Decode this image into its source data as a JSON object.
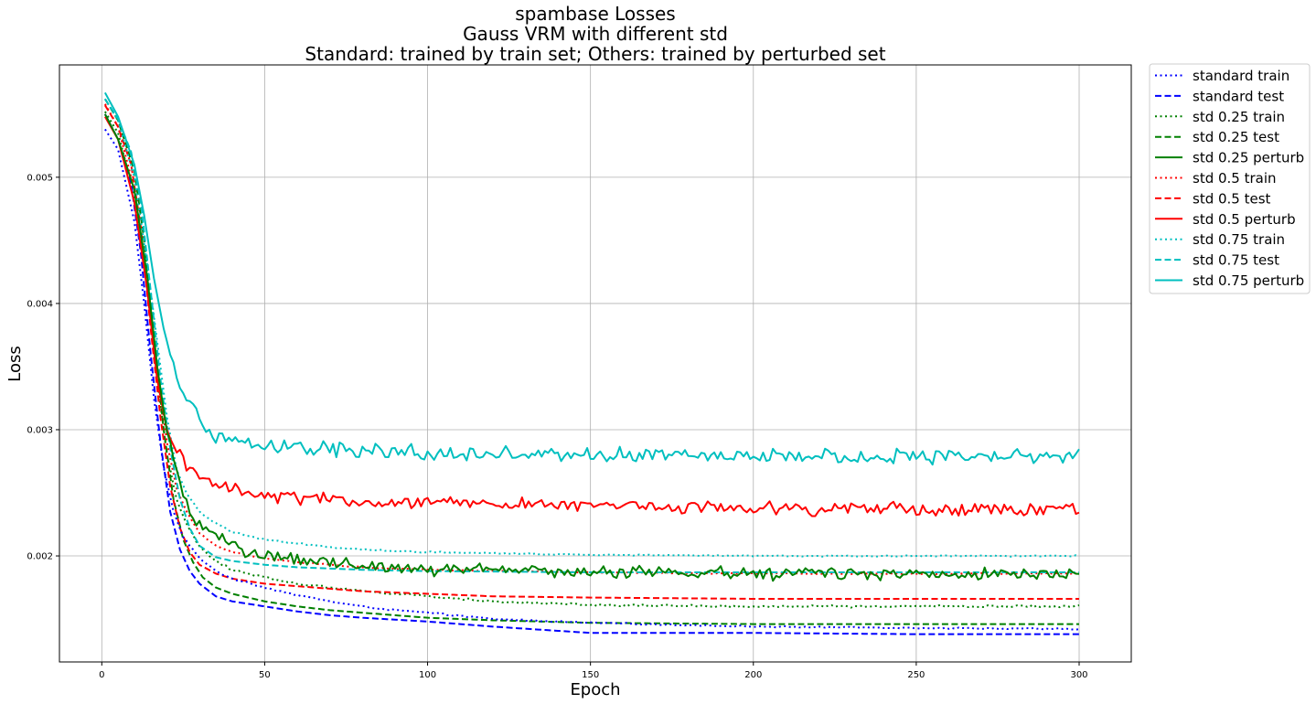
{
  "chart_data": {
    "type": "line",
    "title": [
      "spambase Losses",
      "Gauss VRM with different std",
      "Standard: trained by train set; Others: trained by perturbed set"
    ],
    "xlabel": "Epoch",
    "ylabel": "Loss",
    "xlim": [
      -13,
      316
    ],
    "ylim": [
      0.00116,
      0.00589
    ],
    "x_ticks": [
      0,
      50,
      100,
      150,
      200,
      250,
      300
    ],
    "x_tick_labels": [
      "0",
      "50",
      "100",
      "150",
      "200",
      "250",
      "300"
    ],
    "y_ticks": [
      0.002,
      0.003,
      0.004,
      0.005
    ],
    "y_tick_labels": [
      "0.002",
      "0.003",
      "0.004",
      "0.005"
    ],
    "grid": true,
    "legend_position": "outside-top-right",
    "epochs": [
      1,
      300
    ],
    "series": [
      {
        "name": "standard train",
        "color": "#0000ff",
        "style": "dotted",
        "points": [
          [
            1,
            0.00538
          ],
          [
            5,
            0.00522
          ],
          [
            10,
            0.00465
          ],
          [
            13,
            0.004
          ],
          [
            16,
            0.00325
          ],
          [
            19,
            0.0027
          ],
          [
            22,
            0.00235
          ],
          [
            25,
            0.00215
          ],
          [
            30,
            0.00198
          ],
          [
            35,
            0.00188
          ],
          [
            40,
            0.00182
          ],
          [
            50,
            0.00175
          ],
          [
            60,
            0.00169
          ],
          [
            70,
            0.00164
          ],
          [
            80,
            0.0016
          ],
          [
            90,
            0.00157
          ],
          [
            100,
            0.00155
          ],
          [
            120,
            0.0015
          ],
          [
            150,
            0.00147
          ],
          [
            200,
            0.00144
          ],
          [
            250,
            0.00143
          ],
          [
            300,
            0.00142
          ]
        ],
        "noise": 5e-06
      },
      {
        "name": "standard test",
        "color": "#0000ff",
        "style": "dashed",
        "points": [
          [
            1,
            0.0055
          ],
          [
            5,
            0.0053
          ],
          [
            9,
            0.00495
          ],
          [
            12,
            0.0044
          ],
          [
            15,
            0.0036
          ],
          [
            18,
            0.0029
          ],
          [
            21,
            0.00235
          ],
          [
            24,
            0.00205
          ],
          [
            27,
            0.00188
          ],
          [
            30,
            0.00178
          ],
          [
            35,
            0.00168
          ],
          [
            40,
            0.00164
          ],
          [
            50,
            0.0016
          ],
          [
            60,
            0.00156
          ],
          [
            70,
            0.00153
          ],
          [
            80,
            0.00151
          ],
          [
            100,
            0.00148
          ],
          [
            120,
            0.00144
          ],
          [
            150,
            0.00139
          ],
          [
            200,
            0.00139
          ],
          [
            250,
            0.00138
          ],
          [
            300,
            0.00138
          ]
        ],
        "noise": 0
      },
      {
        "name": "std 0.25 train",
        "color": "#008000",
        "style": "dotted",
        "points": [
          [
            1,
            0.00552
          ],
          [
            5,
            0.00535
          ],
          [
            10,
            0.00485
          ],
          [
            14,
            0.0041
          ],
          [
            17,
            0.0034
          ],
          [
            20,
            0.0028
          ],
          [
            23,
            0.00245
          ],
          [
            26,
            0.00225
          ],
          [
            30,
            0.00207
          ],
          [
            35,
            0.00196
          ],
          [
            40,
            0.00189
          ],
          [
            50,
            0.00183
          ],
          [
            60,
            0.00178
          ],
          [
            70,
            0.00175
          ],
          [
            80,
            0.00172
          ],
          [
            90,
            0.0017
          ],
          [
            100,
            0.00168
          ],
          [
            120,
            0.00164
          ],
          [
            150,
            0.00161
          ],
          [
            200,
            0.0016
          ],
          [
            250,
            0.0016
          ],
          [
            300,
            0.0016
          ]
        ],
        "noise": 8e-06
      },
      {
        "name": "std 0.25 test",
        "color": "#008000",
        "style": "dashed",
        "points": [
          [
            1,
            0.00562
          ],
          [
            5,
            0.00545
          ],
          [
            10,
            0.00505
          ],
          [
            13,
            0.0045
          ],
          [
            16,
            0.00375
          ],
          [
            19,
            0.003
          ],
          [
            22,
            0.00245
          ],
          [
            25,
            0.00213
          ],
          [
            28,
            0.00195
          ],
          [
            31,
            0.00183
          ],
          [
            35,
            0.00175
          ],
          [
            40,
            0.0017
          ],
          [
            50,
            0.00164
          ],
          [
            60,
            0.0016
          ],
          [
            70,
            0.00157
          ],
          [
            80,
            0.00155
          ],
          [
            100,
            0.00151
          ],
          [
            120,
            0.00149
          ],
          [
            150,
            0.00147
          ],
          [
            200,
            0.00146
          ],
          [
            250,
            0.00146
          ],
          [
            300,
            0.00146
          ]
        ],
        "noise": 0
      },
      {
        "name": "std 0.25 perturb",
        "color": "#008000",
        "style": "solid",
        "points": [
          [
            1,
            0.0055
          ],
          [
            5,
            0.0053
          ],
          [
            10,
            0.0049
          ],
          [
            14,
            0.0042
          ],
          [
            17,
            0.0035
          ],
          [
            20,
            0.00298
          ],
          [
            23,
            0.00265
          ],
          [
            26,
            0.0024
          ],
          [
            30,
            0.00225
          ],
          [
            35,
            0.00215
          ],
          [
            40,
            0.00208
          ],
          [
            50,
            0.002
          ],
          [
            60,
            0.00196
          ],
          [
            80,
            0.00192
          ],
          [
            100,
            0.0019
          ],
          [
            150,
            0.00187
          ],
          [
            200,
            0.00186
          ],
          [
            250,
            0.00186
          ],
          [
            300,
            0.00186
          ]
        ],
        "noise": 4.5e-05
      },
      {
        "name": "std 0.5 train",
        "color": "#ff0000",
        "style": "dotted",
        "points": [
          [
            1,
            0.00558
          ],
          [
            5,
            0.0054
          ],
          [
            10,
            0.0049
          ],
          [
            14,
            0.0042
          ],
          [
            17,
            0.0035
          ],
          [
            20,
            0.0029
          ],
          [
            23,
            0.00253
          ],
          [
            26,
            0.00235
          ],
          [
            30,
            0.00218
          ],
          [
            35,
            0.00208
          ],
          [
            40,
            0.00203
          ],
          [
            50,
            0.00198
          ],
          [
            60,
            0.00195
          ],
          [
            70,
            0.00193
          ],
          [
            80,
            0.00191
          ],
          [
            100,
            0.00189
          ],
          [
            150,
            0.00187
          ],
          [
            200,
            0.00186
          ],
          [
            250,
            0.00186
          ],
          [
            300,
            0.00186
          ]
        ],
        "noise": 4e-06
      },
      {
        "name": "std 0.5 test",
        "color": "#ff0000",
        "style": "dashed",
        "points": [
          [
            1,
            0.00557
          ],
          [
            5,
            0.0054
          ],
          [
            9,
            0.0051
          ],
          [
            12,
            0.0046
          ],
          [
            15,
            0.0038
          ],
          [
            18,
            0.0031
          ],
          [
            21,
            0.00255
          ],
          [
            24,
            0.00222
          ],
          [
            27,
            0.00203
          ],
          [
            30,
            0.00193
          ],
          [
            35,
            0.00186
          ],
          [
            40,
            0.00182
          ],
          [
            50,
            0.00178
          ],
          [
            60,
            0.00176
          ],
          [
            70,
            0.00174
          ],
          [
            80,
            0.00172
          ],
          [
            100,
            0.0017
          ],
          [
            120,
            0.00168
          ],
          [
            150,
            0.00167
          ],
          [
            200,
            0.00166
          ],
          [
            250,
            0.00166
          ],
          [
            300,
            0.00166
          ]
        ],
        "noise": 0
      },
      {
        "name": "std 0.5 perturb",
        "color": "#ff0000",
        "style": "solid",
        "points": [
          [
            1,
            0.00548
          ],
          [
            5,
            0.0053
          ],
          [
            10,
            0.0048
          ],
          [
            14,
            0.0041
          ],
          [
            17,
            0.0034
          ],
          [
            20,
            0.003
          ],
          [
            23,
            0.00285
          ],
          [
            26,
            0.00273
          ],
          [
            30,
            0.00264
          ],
          [
            35,
            0.00258
          ],
          [
            40,
            0.00254
          ],
          [
            50,
            0.00248
          ],
          [
            60,
            0.00246
          ],
          [
            80,
            0.00244
          ],
          [
            100,
            0.00242
          ],
          [
            150,
            0.0024
          ],
          [
            200,
            0.00238
          ],
          [
            250,
            0.00237
          ],
          [
            300,
            0.00236
          ]
        ],
        "noise": 4.5e-05
      },
      {
        "name": "std 0.75 train",
        "color": "#00bfbf",
        "style": "dotted",
        "points": [
          [
            1,
            0.00562
          ],
          [
            5,
            0.00545
          ],
          [
            10,
            0.005
          ],
          [
            14,
            0.0043
          ],
          [
            17,
            0.0037
          ],
          [
            20,
            0.0031
          ],
          [
            23,
            0.00268
          ],
          [
            26,
            0.0025
          ],
          [
            30,
            0.00235
          ],
          [
            35,
            0.00226
          ],
          [
            40,
            0.00219
          ],
          [
            50,
            0.00213
          ],
          [
            60,
            0.0021
          ],
          [
            70,
            0.00207
          ],
          [
            80,
            0.00205
          ],
          [
            100,
            0.00203
          ],
          [
            150,
            0.00201
          ],
          [
            200,
            0.002
          ],
          [
            250,
            0.002
          ],
          [
            300,
            0.002
          ]
        ],
        "noise": 5e-06
      },
      {
        "name": "std 0.75 test",
        "color": "#00bfbf",
        "style": "dashed",
        "points": [
          [
            1,
            0.00562
          ],
          [
            5,
            0.00546
          ],
          [
            9,
            0.0052
          ],
          [
            12,
            0.0048
          ],
          [
            15,
            0.0041
          ],
          [
            18,
            0.0034
          ],
          [
            21,
            0.00285
          ],
          [
            24,
            0.00245
          ],
          [
            27,
            0.00222
          ],
          [
            30,
            0.00208
          ],
          [
            35,
            0.00199
          ],
          [
            40,
            0.00196
          ],
          [
            50,
            0.00193
          ],
          [
            60,
            0.00191
          ],
          [
            70,
            0.0019
          ],
          [
            80,
            0.00189
          ],
          [
            100,
            0.00188
          ],
          [
            150,
            0.00187
          ],
          [
            200,
            0.00187
          ],
          [
            250,
            0.00187
          ],
          [
            300,
            0.00187
          ]
        ],
        "noise": 0
      },
      {
        "name": "std 0.75 perturb",
        "color": "#00bfbf",
        "style": "solid",
        "points": [
          [
            1,
            0.00567
          ],
          [
            5,
            0.00548
          ],
          [
            10,
            0.0051
          ],
          [
            13,
            0.0047
          ],
          [
            16,
            0.0042
          ],
          [
            19,
            0.0038
          ],
          [
            22,
            0.0035
          ],
          [
            25,
            0.0033
          ],
          [
            28,
            0.00315
          ],
          [
            31,
            0.00303
          ],
          [
            35,
            0.00295
          ],
          [
            40,
            0.0029
          ],
          [
            50,
            0.00287
          ],
          [
            70,
            0.00284
          ],
          [
            100,
            0.00282
          ],
          [
            150,
            0.0028
          ],
          [
            200,
            0.00279
          ],
          [
            250,
            0.00279
          ],
          [
            300,
            0.00279
          ]
        ],
        "noise": 5e-05
      }
    ]
  }
}
